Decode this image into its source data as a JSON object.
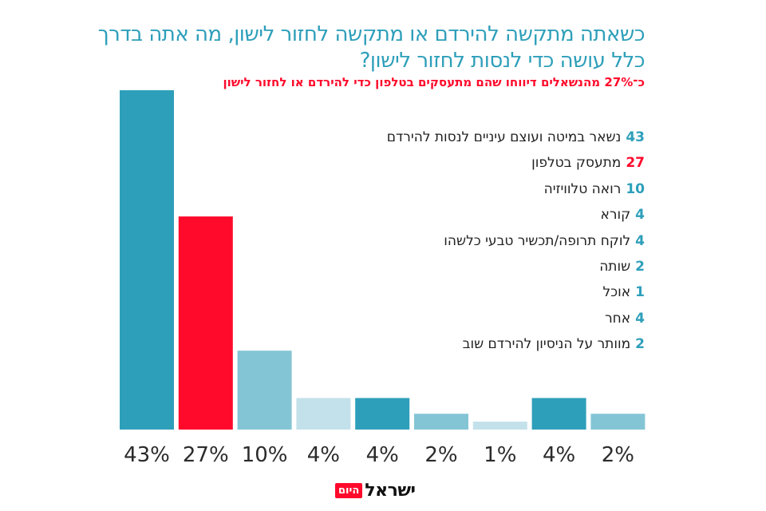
{
  "title": "כשאתה מתקשה להירדם או מתקשה לחזור לישון, מה אתה בדרך כלל עושה כדי לנסות לחזור לישון?",
  "subtitle": "כ־27% מהנשאלים דיווחו שהם מתעסקים בטלפון כדי להירדם או לחזור לישון",
  "colors": {
    "teal_dark": "#2e9fba",
    "red": "#ff0a2b",
    "teal_mid": "#84c5d5",
    "teal_light": "#c3e1eb"
  },
  "chart_data": {
    "type": "bar",
    "title": "כשאתה מתקשה להירדם או מתקשה לחזור לישון, מה אתה בדרך כלל עושה כדי לנסות לחזור לישון?",
    "subtitle": "כ־27% מהנשאלים דיווחו שהם מתעסקים בטלפון כדי להירדם או לחזור לישון",
    "xlabel": "",
    "ylabel": "",
    "ylim": [
      0,
      43
    ],
    "grid": false,
    "legend_position": "top-right",
    "categories": [
      "נשאר במיטה ועוצם עיניים לנסות להירדם",
      "מתעסק בטלפון",
      "רואה טלוויזיה",
      "קורא",
      "לוקח תרופה/תכשיר טבעי כלשהו",
      "שותה",
      "אוכל",
      "אחר",
      "מוותר על הניסיון להירדם שוב"
    ],
    "values": [
      43,
      27,
      10,
      4,
      4,
      2,
      1,
      4,
      2
    ],
    "value_labels": [
      "43%",
      "27%",
      "10%",
      "4%",
      "4%",
      "2%",
      "1%",
      "4%",
      "2%"
    ],
    "legend_numbers": [
      "43",
      "27",
      "10",
      "4",
      "4",
      "2",
      "1",
      "4",
      "2"
    ],
    "bar_colors": [
      "#2e9fba",
      "#ff0a2b",
      "#84c5d5",
      "#c3e1eb",
      "#2e9fba",
      "#84c5d5",
      "#c3e1eb",
      "#2e9fba",
      "#84c5d5"
    ]
  },
  "logo": {
    "main": "ישראל",
    "box": "היום"
  }
}
